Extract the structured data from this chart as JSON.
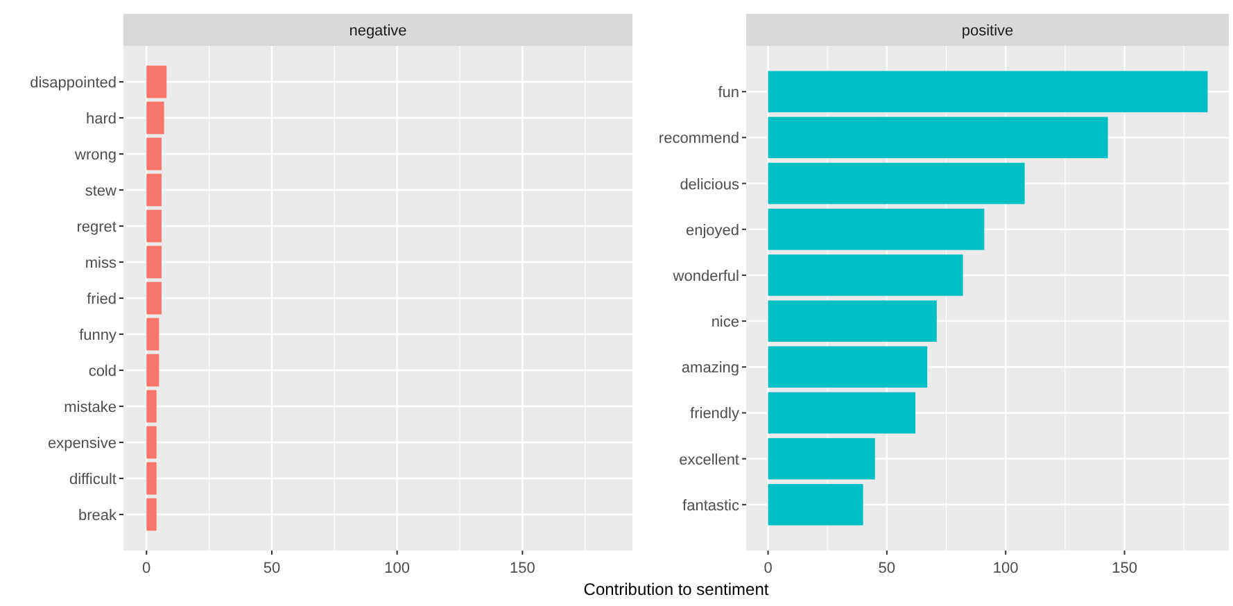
{
  "chart_data": [
    {
      "type": "bar",
      "orientation": "horizontal",
      "title": "negative",
      "xlabel": "Contribution to sentiment",
      "categories": [
        "disappointed",
        "hard",
        "wrong",
        "stew",
        "regret",
        "miss",
        "fried",
        "funny",
        "cold",
        "mistake",
        "expensive",
        "difficult",
        "break"
      ],
      "values": [
        8,
        7,
        6,
        6,
        6,
        6,
        6,
        5,
        5,
        4,
        4,
        4,
        4
      ],
      "color": "#f8766d",
      "xlim": [
        -9.2,
        193.9
      ],
      "xticks": [
        0,
        {
          "value": 25,
          "label": null
        },
        50,
        {
          "value": 75,
          "label": null
        },
        100,
        {
          "value": 125,
          "label": null
        },
        150,
        {
          "value": 175,
          "label": null
        }
      ],
      "grid": true
    },
    {
      "type": "bar",
      "orientation": "horizontal",
      "title": "positive",
      "categories": [
        "fun",
        "recommend",
        "delicious",
        "enjoyed",
        "wonderful",
        "nice",
        "amazing",
        "friendly",
        "excellent",
        "fantastic"
      ],
      "values": [
        185,
        143,
        108,
        91,
        82,
        71,
        67,
        62,
        45,
        40
      ],
      "color": "#00bfc4",
      "xlim": [
        -9.2,
        193.9
      ],
      "xticks": [
        0,
        {
          "value": 25,
          "label": null
        },
        50,
        {
          "value": 75,
          "label": null
        },
        100,
        {
          "value": 125,
          "label": null
        },
        150,
        {
          "value": 175,
          "label": null
        }
      ],
      "grid": true
    }
  ]
}
